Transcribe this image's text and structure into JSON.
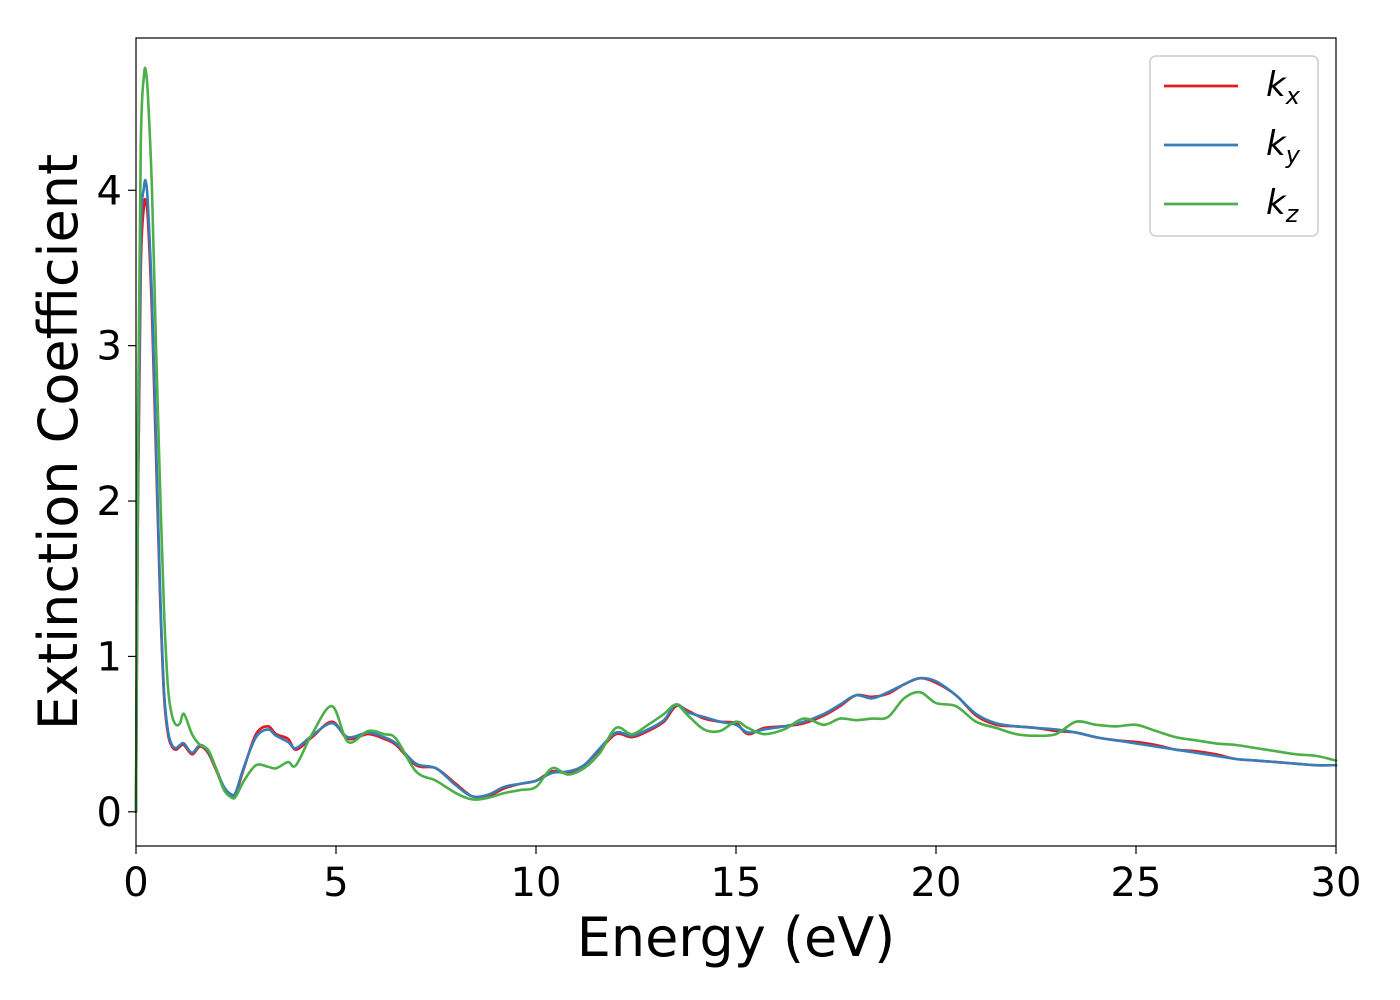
{
  "chart_data": {
    "type": "line",
    "xlabel": "Energy (eV)",
    "ylabel": "Extinction Coefficient",
    "xlim": [
      0,
      30
    ],
    "ylim": [
      -0.22,
      4.98
    ],
    "xticks": [
      "0",
      "5",
      "10",
      "15",
      "20",
      "25",
      "30"
    ],
    "yticks": [
      "0",
      "1",
      "2",
      "3",
      "4"
    ],
    "grid": false,
    "legend_position": "top-right",
    "series": [
      {
        "name": "k_x",
        "legend_base": "k",
        "legend_sub": "x",
        "color": "#e41a1c",
        "x": [
          0,
          0.05,
          0.12,
          0.2,
          0.25,
          0.3,
          0.4,
          0.5,
          0.6,
          0.7,
          0.8,
          0.9,
          1.0,
          1.1,
          1.2,
          1.4,
          1.6,
          1.8,
          2.0,
          2.2,
          2.4,
          2.5,
          2.7,
          3.0,
          3.3,
          3.5,
          3.8,
          4.0,
          4.4,
          4.9,
          5.3,
          5.8,
          6.2,
          6.5,
          7.0,
          7.5,
          8.0,
          8.4,
          8.8,
          9.2,
          9.6,
          10.0,
          10.4,
          10.8,
          11.2,
          11.6,
          12.0,
          12.4,
          12.8,
          13.2,
          13.5,
          13.8,
          14.2,
          14.6,
          15.0,
          15.3,
          15.7,
          16.2,
          16.7,
          17.2,
          17.6,
          18.0,
          18.4,
          18.8,
          19.2,
          19.6,
          20.0,
          20.5,
          21.0,
          21.5,
          22.0,
          22.5,
          23.0,
          23.5,
          24.0,
          24.5,
          25.0,
          25.5,
          26.0,
          26.5,
          27.0,
          27.5,
          28.0,
          28.5,
          29.0,
          29.5,
          30.0
        ],
        "y": [
          0,
          2.0,
          3.5,
          3.9,
          3.92,
          3.8,
          3.2,
          2.3,
          1.4,
          0.75,
          0.5,
          0.42,
          0.4,
          0.42,
          0.43,
          0.37,
          0.42,
          0.38,
          0.27,
          0.15,
          0.1,
          0.12,
          0.28,
          0.5,
          0.55,
          0.5,
          0.47,
          0.4,
          0.48,
          0.58,
          0.47,
          0.5,
          0.47,
          0.43,
          0.3,
          0.28,
          0.18,
          0.1,
          0.1,
          0.15,
          0.18,
          0.2,
          0.26,
          0.25,
          0.3,
          0.4,
          0.5,
          0.48,
          0.52,
          0.58,
          0.68,
          0.65,
          0.6,
          0.58,
          0.57,
          0.5,
          0.54,
          0.55,
          0.57,
          0.62,
          0.68,
          0.75,
          0.74,
          0.76,
          0.82,
          0.86,
          0.83,
          0.75,
          0.62,
          0.56,
          0.55,
          0.54,
          0.52,
          0.51,
          0.48,
          0.46,
          0.45,
          0.43,
          0.4,
          0.39,
          0.37,
          0.34,
          0.33,
          0.32,
          0.31,
          0.3,
          0.3
        ]
      },
      {
        "name": "k_y",
        "legend_base": "k",
        "legend_sub": "y",
        "color": "#377eb8",
        "x": [
          0,
          0.05,
          0.12,
          0.2,
          0.25,
          0.3,
          0.4,
          0.5,
          0.6,
          0.7,
          0.8,
          0.9,
          1.0,
          1.1,
          1.2,
          1.4,
          1.6,
          1.8,
          2.0,
          2.2,
          2.4,
          2.5,
          2.7,
          3.0,
          3.3,
          3.5,
          3.8,
          4.0,
          4.4,
          4.9,
          5.3,
          5.8,
          6.2,
          6.5,
          7.0,
          7.5,
          8.0,
          8.4,
          8.8,
          9.2,
          9.6,
          10.0,
          10.4,
          10.8,
          11.2,
          11.6,
          12.0,
          12.4,
          12.8,
          13.2,
          13.5,
          13.8,
          14.2,
          14.6,
          15.0,
          15.3,
          15.7,
          16.2,
          16.7,
          17.2,
          17.6,
          18.0,
          18.4,
          18.8,
          19.2,
          19.6,
          20.0,
          20.5,
          21.0,
          21.5,
          22.0,
          22.5,
          23.0,
          23.5,
          24.0,
          24.5,
          25.0,
          25.5,
          26.0,
          26.5,
          27.0,
          27.5,
          28.0,
          28.5,
          29.0,
          29.5,
          30.0
        ],
        "y": [
          0,
          2.1,
          3.7,
          4.02,
          4.05,
          3.9,
          3.3,
          2.4,
          1.45,
          0.78,
          0.52,
          0.43,
          0.41,
          0.43,
          0.44,
          0.38,
          0.43,
          0.39,
          0.28,
          0.16,
          0.11,
          0.13,
          0.29,
          0.48,
          0.53,
          0.49,
          0.45,
          0.41,
          0.49,
          0.57,
          0.48,
          0.51,
          0.48,
          0.44,
          0.31,
          0.28,
          0.17,
          0.1,
          0.11,
          0.16,
          0.18,
          0.2,
          0.25,
          0.26,
          0.3,
          0.41,
          0.51,
          0.49,
          0.53,
          0.59,
          0.69,
          0.64,
          0.61,
          0.58,
          0.56,
          0.51,
          0.53,
          0.55,
          0.58,
          0.63,
          0.69,
          0.75,
          0.73,
          0.77,
          0.82,
          0.86,
          0.84,
          0.75,
          0.63,
          0.57,
          0.55,
          0.54,
          0.53,
          0.51,
          0.48,
          0.46,
          0.44,
          0.42,
          0.4,
          0.38,
          0.36,
          0.34,
          0.33,
          0.32,
          0.31,
          0.3,
          0.3
        ]
      },
      {
        "name": "k_z",
        "legend_base": "k",
        "legend_sub": "z",
        "color": "#4daf4a",
        "x": [
          0,
          0.05,
          0.12,
          0.2,
          0.25,
          0.3,
          0.4,
          0.5,
          0.6,
          0.7,
          0.8,
          0.9,
          1.0,
          1.1,
          1.2,
          1.4,
          1.6,
          1.8,
          2.0,
          2.2,
          2.4,
          2.5,
          2.7,
          3.0,
          3.3,
          3.5,
          3.8,
          4.0,
          4.4,
          4.9,
          5.3,
          5.8,
          6.2,
          6.5,
          7.0,
          7.5,
          8.0,
          8.4,
          8.8,
          9.2,
          9.6,
          10.0,
          10.4,
          10.8,
          11.2,
          11.6,
          12.0,
          12.4,
          12.8,
          13.2,
          13.5,
          13.8,
          14.2,
          14.6,
          15.0,
          15.3,
          15.7,
          16.2,
          16.7,
          17.2,
          17.6,
          18.0,
          18.4,
          18.8,
          19.2,
          19.6,
          20.0,
          20.5,
          21.0,
          21.5,
          22.0,
          22.5,
          23.0,
          23.5,
          24.0,
          24.5,
          25.0,
          25.5,
          26.0,
          26.5,
          27.0,
          27.5,
          28.0,
          28.5,
          29.0,
          29.5,
          30.0
        ],
        "y": [
          0,
          2.5,
          4.3,
          4.74,
          4.76,
          4.6,
          4.0,
          3.0,
          2.1,
          1.3,
          0.8,
          0.62,
          0.56,
          0.57,
          0.63,
          0.5,
          0.43,
          0.4,
          0.28,
          0.14,
          0.09,
          0.1,
          0.2,
          0.3,
          0.29,
          0.28,
          0.32,
          0.3,
          0.5,
          0.68,
          0.45,
          0.52,
          0.5,
          0.47,
          0.26,
          0.2,
          0.12,
          0.08,
          0.09,
          0.12,
          0.14,
          0.16,
          0.28,
          0.24,
          0.28,
          0.38,
          0.54,
          0.5,
          0.56,
          0.63,
          0.69,
          0.62,
          0.53,
          0.52,
          0.58,
          0.54,
          0.5,
          0.53,
          0.6,
          0.56,
          0.6,
          0.59,
          0.6,
          0.61,
          0.73,
          0.77,
          0.7,
          0.68,
          0.58,
          0.54,
          0.5,
          0.49,
          0.5,
          0.58,
          0.56,
          0.55,
          0.56,
          0.52,
          0.48,
          0.46,
          0.44,
          0.43,
          0.41,
          0.39,
          0.37,
          0.36,
          0.33
        ]
      }
    ]
  }
}
